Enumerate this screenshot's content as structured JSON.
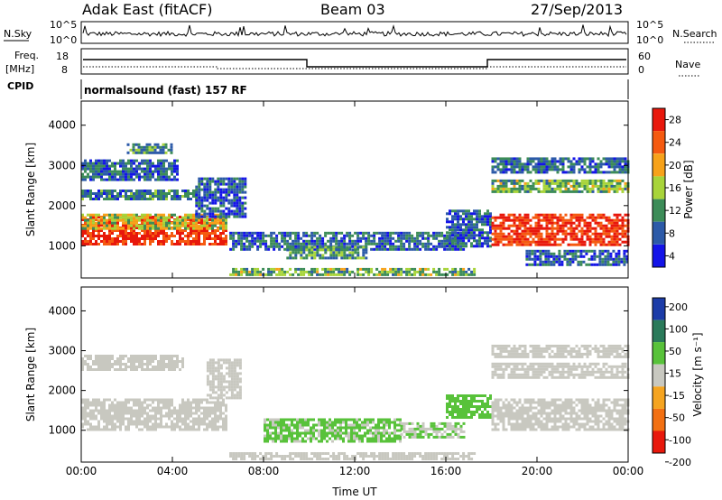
{
  "header": {
    "title": "Adak East (fitACF)",
    "beam": "Beam 03",
    "date": "27/Sep/2013"
  },
  "sky_panel": {
    "left_label": "N.Sky",
    "right_label": "N.Search",
    "left_ticks": [
      "10^5",
      "10^0"
    ],
    "right_ticks": [
      "10^5",
      "10^0"
    ]
  },
  "freq_panel": {
    "left_label_line1": "Freq.",
    "left_label_line2": "[MHz]",
    "right_label": "Nave",
    "left_ticks": [
      "18",
      "8"
    ],
    "right_ticks": [
      "60",
      "0"
    ],
    "cpid_label": "CPID",
    "cpid_text": "normalsound (fast) 157 RF"
  },
  "power_legend": {
    "title": "Power [dB]",
    "labels": [
      "28",
      "24",
      "20",
      "16",
      "12",
      "8",
      "4"
    ],
    "colors": [
      "#e8180c",
      "#f55a10",
      "#f7a21a",
      "#a8d43a",
      "#3c8c58",
      "#2c5aa8",
      "#1414e8"
    ]
  },
  "velocity_legend": {
    "title": "Velocity [m s⁻¹]",
    "labels": [
      "200",
      "100",
      "50",
      "15",
      "-15",
      "-50",
      "-100",
      "-200"
    ],
    "colors": [
      "#1c3ca8",
      "#2a7a5a",
      "#58c23a",
      "#c8c8c0",
      "#f5a420",
      "#f27012",
      "#e8180c"
    ]
  },
  "chart_data": [
    {
      "type": "heatmap",
      "name": "power",
      "ylabel": "Slant Range [km]",
      "xlim": [
        0,
        24
      ],
      "ylim": [
        200,
        4600
      ],
      "yticks": [
        1000,
        2000,
        3000,
        4000
      ],
      "xticks": [
        "00:00",
        "04:00",
        "08:00",
        "12:00",
        "16:00",
        "20:00",
        "00:00"
      ],
      "bands": [
        {
          "t0": 0.0,
          "t1": 6.4,
          "r0": 1050,
          "r1": 1750,
          "value": 27
        },
        {
          "t0": 0.0,
          "t1": 6.4,
          "r0": 1450,
          "r1": 1800,
          "value": 17
        },
        {
          "t0": 0.0,
          "t1": 5.0,
          "r0": 2150,
          "r1": 2400,
          "value": 10
        },
        {
          "t0": 0.0,
          "t1": 4.2,
          "r0": 2650,
          "r1": 3150,
          "value": 9
        },
        {
          "t0": 2.0,
          "t1": 4.0,
          "r0": 3300,
          "r1": 3550,
          "value": 11
        },
        {
          "t0": 5.0,
          "t1": 7.2,
          "r0": 1700,
          "r1": 2700,
          "value": 8
        },
        {
          "t0": 6.5,
          "t1": 16.8,
          "r0": 900,
          "r1": 1350,
          "value": 9
        },
        {
          "t0": 9.0,
          "t1": 12.5,
          "r0": 700,
          "r1": 1000,
          "value": 12
        },
        {
          "t0": 6.5,
          "t1": 17.2,
          "r0": 250,
          "r1": 450,
          "value": 14
        },
        {
          "t0": 16.0,
          "t1": 18.0,
          "r0": 1000,
          "r1": 1900,
          "value": 8
        },
        {
          "t0": 18.0,
          "t1": 24.0,
          "r0": 1050,
          "r1": 1800,
          "value": 27
        },
        {
          "t0": 18.0,
          "t1": 24.0,
          "r0": 2350,
          "r1": 2650,
          "value": 14
        },
        {
          "t0": 18.0,
          "t1": 24.0,
          "r0": 2850,
          "r1": 3200,
          "value": 9
        },
        {
          "t0": 19.5,
          "t1": 24.0,
          "r0": 500,
          "r1": 900,
          "value": 8
        }
      ]
    },
    {
      "type": "heatmap",
      "name": "velocity",
      "ylabel": "Slant Range [km]",
      "xlabel": "Time UT",
      "xlim": [
        0,
        24
      ],
      "ylim": [
        200,
        4600
      ],
      "yticks": [
        1000,
        2000,
        3000,
        4000
      ],
      "xticks": [
        "00:00",
        "04:00",
        "08:00",
        "12:00",
        "16:00",
        "20:00",
        "00:00"
      ],
      "bands": [
        {
          "t0": 0.0,
          "t1": 6.4,
          "r0": 1050,
          "r1": 1800,
          "value": 0
        },
        {
          "t0": 0.0,
          "t1": 4.5,
          "r0": 2550,
          "r1": 2900,
          "value": 0
        },
        {
          "t0": 5.5,
          "t1": 7.0,
          "r0": 1800,
          "r1": 2800,
          "value": 0
        },
        {
          "t0": 8.0,
          "t1": 14.0,
          "r0": 700,
          "r1": 1300,
          "value": 40
        },
        {
          "t0": 14.0,
          "t1": 16.8,
          "r0": 800,
          "r1": 1200,
          "value": 30
        },
        {
          "t0": 6.5,
          "t1": 17.2,
          "r0": 250,
          "r1": 450,
          "value": 0
        },
        {
          "t0": 16.0,
          "t1": 18.0,
          "r0": 1300,
          "r1": 1900,
          "value": 60
        },
        {
          "t0": 18.0,
          "t1": 24.0,
          "r0": 1050,
          "r1": 1800,
          "value": 0
        },
        {
          "t0": 18.0,
          "t1": 24.0,
          "r0": 2350,
          "r1": 2700,
          "value": 0
        },
        {
          "t0": 18.0,
          "t1": 24.0,
          "r0": 2850,
          "r1": 3150,
          "value": 0
        }
      ]
    }
  ]
}
